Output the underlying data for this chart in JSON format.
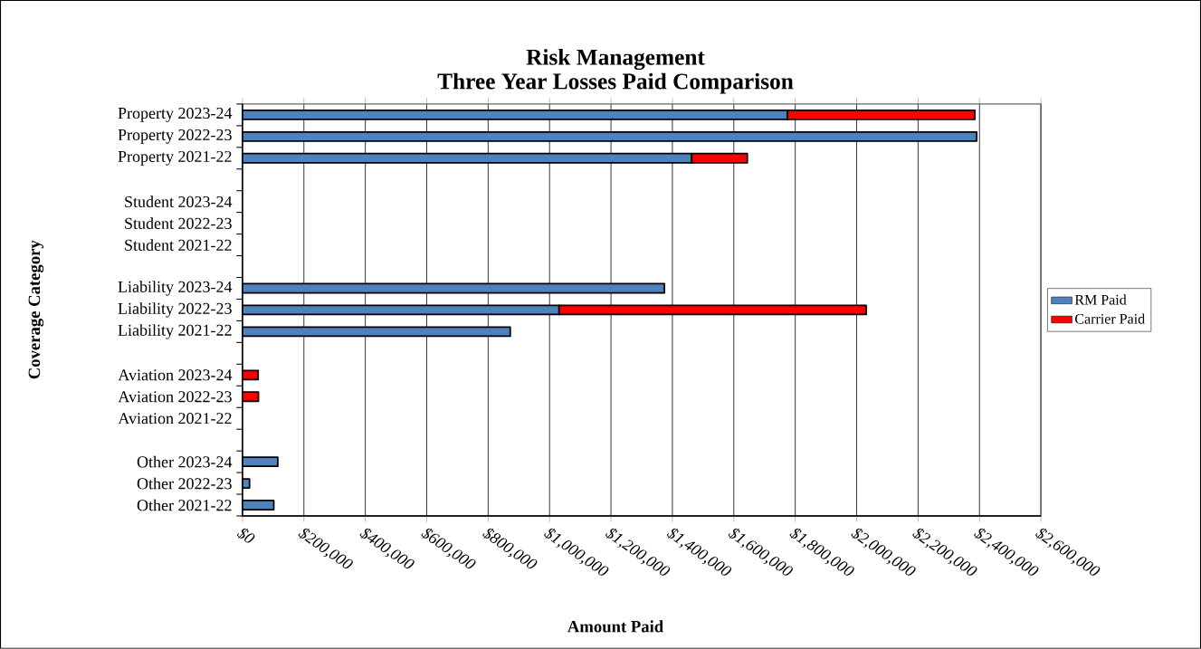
{
  "chart_data": {
    "type": "bar",
    "orientation": "horizontal",
    "stacked": true,
    "title": "Risk Management",
    "subtitle": "Three Year Losses Paid Comparison",
    "xlabel": "Amount Paid",
    "ylabel": "Coverage Category",
    "categories": [
      "Property 2023-24",
      "Property 2022-23",
      "Property 2021-22",
      null,
      "Student 2023-24",
      "Student 2022-23",
      "Student 2021-22",
      null,
      "Liability 2023-24",
      "Liability 2022-23",
      "Liability 2021-22",
      null,
      "Aviation 2023-24",
      "Aviation 2022-23",
      "Aviation 2021-22",
      null,
      "Other 2023-24",
      "Other 2022-23",
      "Other 2021-22"
    ],
    "series": [
      {
        "name": "RM Paid",
        "color": "#4f81bd",
        "values": [
          1775000,
          2391000,
          1463000,
          null,
          null,
          null,
          null,
          null,
          1374000,
          1031000,
          872000,
          null,
          null,
          null,
          null,
          null,
          115000,
          23000,
          102000
        ]
      },
      {
        "name": "Carrier Paid",
        "color": "#ff0000",
        "values": [
          610000,
          null,
          181000,
          null,
          null,
          null,
          null,
          null,
          null,
          1000000,
          null,
          null,
          51000,
          52000,
          null,
          null,
          null,
          null,
          null
        ]
      }
    ],
    "xlim": [
      0,
      2600000
    ],
    "xticks": [
      {
        "value": 0,
        "label": "$0"
      },
      {
        "value": 200000,
        "label": "$200,000"
      },
      {
        "value": 400000,
        "label": "$400,000"
      },
      {
        "value": 600000,
        "label": "$600,000"
      },
      {
        "value": 800000,
        "label": "$800,000"
      },
      {
        "value": 1000000,
        "label": "$1,000,000"
      },
      {
        "value": 1200000,
        "label": "$1,200,000"
      },
      {
        "value": 1400000,
        "label": "$1,400,000"
      },
      {
        "value": 1600000,
        "label": "$1,600,000"
      },
      {
        "value": 1800000,
        "label": "$1,800,000"
      },
      {
        "value": 2000000,
        "label": "$2,000,000"
      },
      {
        "value": 2200000,
        "label": "$2,200,000"
      },
      {
        "value": 2400000,
        "label": "$2,400,000"
      },
      {
        "value": 2600000,
        "label": "$2,600,000"
      }
    ],
    "grid": "x",
    "legend": "right"
  }
}
